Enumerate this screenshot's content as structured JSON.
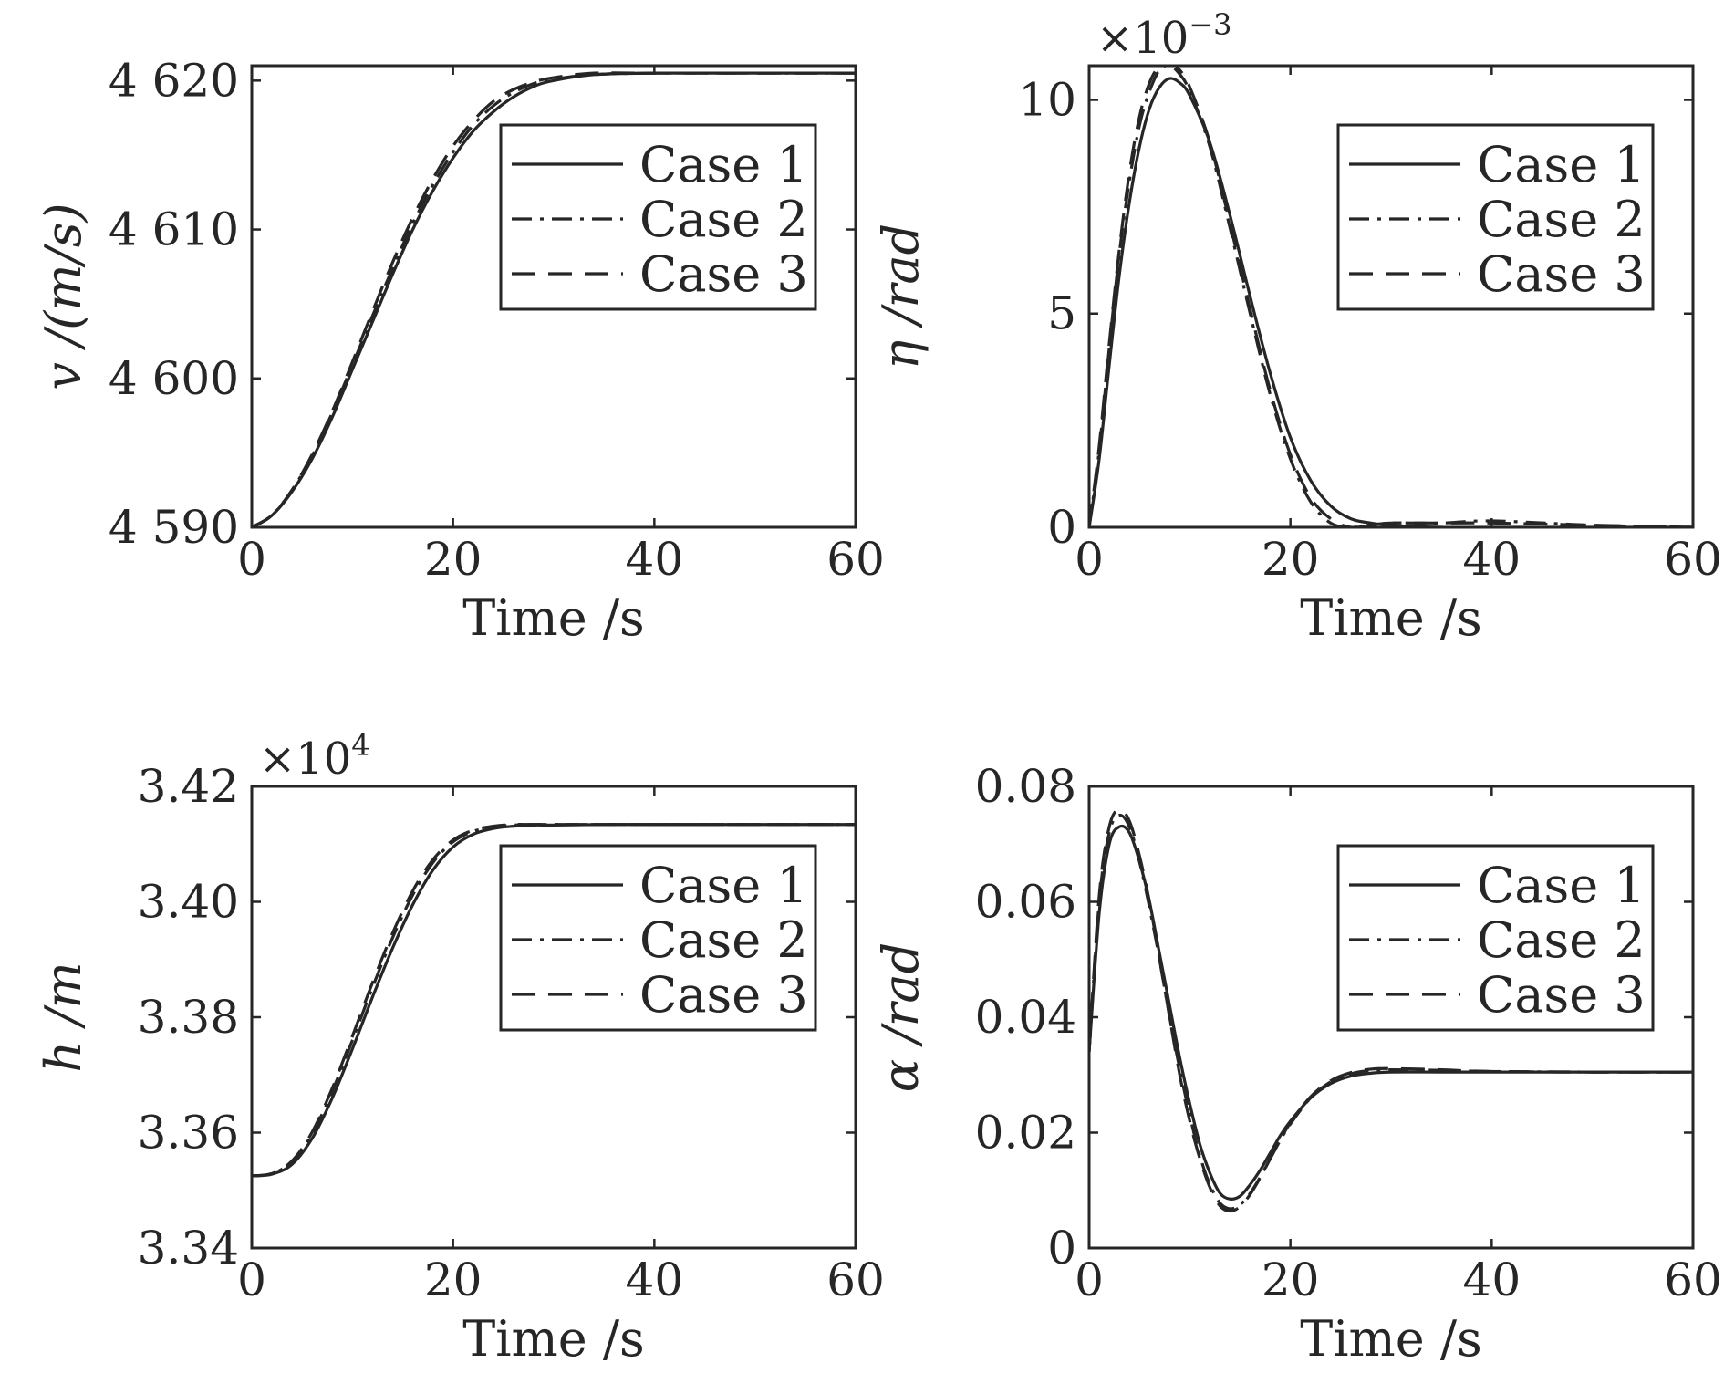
{
  "chart_data": [
    {
      "type": "line",
      "xlabel": "Time /s",
      "ylabel": "v /(m/s)",
      "xlim": [
        0,
        60
      ],
      "ylim": [
        4590,
        4621
      ],
      "xticks": [
        0,
        20,
        40,
        60
      ],
      "xtick_labels": [
        "0",
        "20",
        "40",
        "60"
      ],
      "yticks": [
        4590,
        4600,
        4610,
        4620
      ],
      "ytick_labels": [
        "4 590",
        "4 600",
        "4 610",
        "4 620"
      ],
      "exponent_label": "",
      "grid": false,
      "legend_position": "top-right",
      "series": [
        {
          "name": "Case 1",
          "style": "solid",
          "x": [
            0,
            2,
            4,
            6,
            8,
            10,
            12,
            14,
            16,
            18,
            20,
            22,
            24,
            26,
            28,
            30,
            34,
            40,
            50,
            60
          ],
          "y": [
            4590.0,
            4590.8,
            4592.4,
            4594.6,
            4597.4,
            4600.6,
            4603.8,
            4607.0,
            4610.0,
            4612.6,
            4614.8,
            4616.6,
            4617.9,
            4618.9,
            4619.6,
            4620.0,
            4620.4,
            4620.5,
            4620.5,
            4620.5
          ]
        },
        {
          "name": "Case 2",
          "style": "dashdot",
          "x": [
            0,
            2,
            4,
            6,
            8,
            10,
            12,
            14,
            16,
            18,
            20,
            22,
            24,
            26,
            28,
            30,
            34,
            40,
            50,
            60
          ],
          "y": [
            4590.0,
            4590.8,
            4592.5,
            4594.8,
            4597.7,
            4600.9,
            4604.2,
            4607.4,
            4610.4,
            4613.0,
            4615.2,
            4617.0,
            4618.3,
            4619.2,
            4619.8,
            4620.1,
            4620.4,
            4620.5,
            4620.5,
            4620.5
          ]
        },
        {
          "name": "Case 3",
          "style": "dashed",
          "x": [
            0,
            2,
            4,
            6,
            8,
            10,
            12,
            14,
            16,
            18,
            20,
            22,
            24,
            26,
            28,
            30,
            34,
            40,
            50,
            60
          ],
          "y": [
            4590.0,
            4590.8,
            4592.5,
            4594.9,
            4597.8,
            4601.1,
            4604.5,
            4607.8,
            4610.8,
            4613.4,
            4615.6,
            4617.3,
            4618.6,
            4619.4,
            4619.9,
            4620.2,
            4620.5,
            4620.5,
            4620.5,
            4620.5
          ]
        }
      ]
    },
    {
      "type": "line",
      "xlabel": "Time /s",
      "ylabel": "η /rad",
      "xlim": [
        0,
        60
      ],
      "ylim": [
        0,
        0.0108
      ],
      "xticks": [
        0,
        20,
        40,
        60
      ],
      "xtick_labels": [
        "0",
        "20",
        "40",
        "60"
      ],
      "yticks": [
        0,
        0.005,
        0.01
      ],
      "ytick_labels": [
        "0",
        "5",
        "10"
      ],
      "exponent_label": "×10",
      "exponent_power": "−3",
      "grid": false,
      "legend_position": "top-right",
      "series": [
        {
          "name": "Case 1",
          "style": "solid",
          "x": [
            0,
            1,
            2,
            3,
            4,
            5,
            6,
            7,
            8,
            9,
            10,
            12,
            14,
            16,
            18,
            20,
            22,
            24,
            26,
            28,
            30,
            35,
            40,
            50,
            60
          ],
          "y": [
            0.0,
            0.0016,
            0.0038,
            0.0059,
            0.0076,
            0.0089,
            0.0098,
            0.0103,
            0.0105,
            0.0104,
            0.0101,
            0.009,
            0.0073,
            0.0054,
            0.0036,
            0.0021,
            0.0011,
            0.0005,
            0.0002,
            0.0001,
            5e-05,
            0.0,
            0.0,
            0.0,
            0.0
          ]
        },
        {
          "name": "Case 2",
          "style": "dashdot",
          "x": [
            0,
            1,
            2,
            3,
            4,
            5,
            6,
            7,
            8,
            9,
            10,
            12,
            14,
            16,
            18,
            20,
            22,
            24,
            26,
            28,
            30,
            35,
            40,
            50,
            60
          ],
          "y": [
            0.0,
            0.0018,
            0.0042,
            0.0064,
            0.0081,
            0.0094,
            0.0102,
            0.0107,
            0.0108,
            0.0106,
            0.0102,
            0.0089,
            0.007,
            0.005,
            0.0031,
            0.0016,
            0.0006,
            0.0001,
            0.0,
            5e-05,
            0.0001,
            0.0001,
            0.00015,
            5e-05,
            0.0
          ]
        },
        {
          "name": "Case 3",
          "style": "dashed",
          "x": [
            0,
            1,
            2,
            3,
            4,
            5,
            6,
            7,
            8,
            9,
            10,
            12,
            14,
            16,
            18,
            20,
            22,
            24,
            26,
            28,
            30,
            35,
            40,
            50,
            60
          ],
          "y": [
            0.0,
            0.0019,
            0.0043,
            0.0065,
            0.0083,
            0.0096,
            0.0104,
            0.0108,
            0.0109,
            0.0107,
            0.0103,
            0.009,
            0.0071,
            0.0051,
            0.0032,
            0.0017,
            0.0007,
            0.0002,
            0.0,
            5e-05,
            0.0001,
            0.0001,
            0.0001,
            5e-05,
            0.0
          ]
        }
      ]
    },
    {
      "type": "line",
      "xlabel": "Time /s",
      "ylabel": "h /m",
      "xlim": [
        0,
        60
      ],
      "ylim": [
        33400,
        34200
      ],
      "xticks": [
        0,
        20,
        40,
        60
      ],
      "xtick_labels": [
        "0",
        "20",
        "40",
        "60"
      ],
      "yticks": [
        33400,
        33600,
        33800,
        34000,
        34200
      ],
      "ytick_labels": [
        "3.34",
        "3.36",
        "3.38",
        "3.40",
        "3.42"
      ],
      "exponent_label": "×10",
      "exponent_power": "4",
      "grid": false,
      "legend_position": "top-right",
      "series": [
        {
          "name": "Case 1",
          "style": "solid",
          "x": [
            0,
            2,
            4,
            6,
            8,
            10,
            12,
            14,
            16,
            18,
            20,
            22,
            24,
            26,
            28,
            30,
            35,
            40,
            50,
            60
          ],
          "y": [
            33525,
            33528,
            33545,
            33590,
            33660,
            33745,
            33835,
            33920,
            33995,
            34055,
            34095,
            34117,
            34127,
            34131,
            34133,
            34133,
            34134,
            34134,
            34134,
            34134
          ]
        },
        {
          "name": "Case 2",
          "style": "dashdot",
          "x": [
            0,
            2,
            4,
            6,
            8,
            10,
            12,
            14,
            16,
            18,
            20,
            22,
            24,
            26,
            28,
            30,
            35,
            40,
            50,
            60
          ],
          "y": [
            33525,
            33529,
            33550,
            33598,
            33672,
            33760,
            33852,
            33938,
            34012,
            34068,
            34104,
            34122,
            34130,
            34133,
            34134,
            34134,
            34134,
            34134,
            34134,
            34134
          ]
        },
        {
          "name": "Case 3",
          "style": "dashed",
          "x": [
            0,
            2,
            4,
            6,
            8,
            10,
            12,
            14,
            16,
            18,
            20,
            22,
            24,
            26,
            28,
            30,
            35,
            40,
            50,
            60
          ],
          "y": [
            33525,
            33529,
            33551,
            33601,
            33677,
            33767,
            33860,
            33946,
            34019,
            34073,
            34107,
            34124,
            34131,
            34134,
            34134,
            34134,
            34134,
            34134,
            34134,
            34134
          ]
        }
      ]
    },
    {
      "type": "line",
      "xlabel": "Time /s",
      "ylabel": "α /rad",
      "xlim": [
        0,
        60
      ],
      "ylim": [
        0,
        0.08
      ],
      "xticks": [
        0,
        20,
        40,
        60
      ],
      "xtick_labels": [
        "0",
        "20",
        "40",
        "60"
      ],
      "yticks": [
        0,
        0.02,
        0.04,
        0.06,
        0.08
      ],
      "ytick_labels": [
        "0",
        "0.02",
        "0.04",
        "0.06",
        "0.08"
      ],
      "exponent_label": "",
      "grid": false,
      "legend_position": "top-right",
      "series": [
        {
          "name": "Case 1",
          "style": "solid",
          "x": [
            0,
            1,
            2,
            3,
            4,
            5,
            6,
            7,
            8,
            9,
            10,
            11,
            12,
            13,
            14,
            15,
            16,
            17,
            18,
            19,
            20,
            22,
            24,
            26,
            28,
            30,
            35,
            40,
            50,
            60
          ],
          "y": [
            0.034,
            0.058,
            0.07,
            0.073,
            0.072,
            0.067,
            0.06,
            0.051,
            0.042,
            0.033,
            0.025,
            0.018,
            0.013,
            0.0095,
            0.0085,
            0.009,
            0.011,
            0.0135,
            0.0165,
            0.0195,
            0.022,
            0.026,
            0.0285,
            0.0298,
            0.0303,
            0.0305,
            0.0305,
            0.0305,
            0.0305,
            0.0305
          ]
        },
        {
          "name": "Case 2",
          "style": "dashdot",
          "x": [
            0,
            1,
            2,
            3,
            4,
            5,
            6,
            7,
            8,
            9,
            10,
            11,
            12,
            13,
            14,
            15,
            16,
            17,
            18,
            19,
            20,
            22,
            24,
            26,
            28,
            30,
            35,
            40,
            50,
            60
          ],
          "y": [
            0.034,
            0.06,
            0.072,
            0.075,
            0.073,
            0.067,
            0.059,
            0.05,
            0.04,
            0.031,
            0.023,
            0.016,
            0.011,
            0.0078,
            0.0068,
            0.0075,
            0.0095,
            0.0123,
            0.0155,
            0.0187,
            0.0215,
            0.026,
            0.0288,
            0.0302,
            0.0308,
            0.0309,
            0.0308,
            0.0306,
            0.0305,
            0.0305
          ]
        },
        {
          "name": "Case 3",
          "style": "dashed",
          "x": [
            0,
            1,
            2,
            3,
            4,
            5,
            6,
            7,
            8,
            9,
            10,
            11,
            12,
            13,
            14,
            15,
            16,
            17,
            18,
            19,
            20,
            22,
            24,
            26,
            28,
            30,
            35,
            40,
            50,
            60
          ],
          "y": [
            0.034,
            0.061,
            0.073,
            0.076,
            0.074,
            0.068,
            0.06,
            0.05,
            0.04,
            0.03,
            0.022,
            0.0155,
            0.0105,
            0.0073,
            0.0064,
            0.0072,
            0.0093,
            0.0122,
            0.0155,
            0.0188,
            0.0217,
            0.0262,
            0.029,
            0.0304,
            0.031,
            0.0311,
            0.0309,
            0.0306,
            0.0305,
            0.0305
          ]
        }
      ]
    }
  ]
}
